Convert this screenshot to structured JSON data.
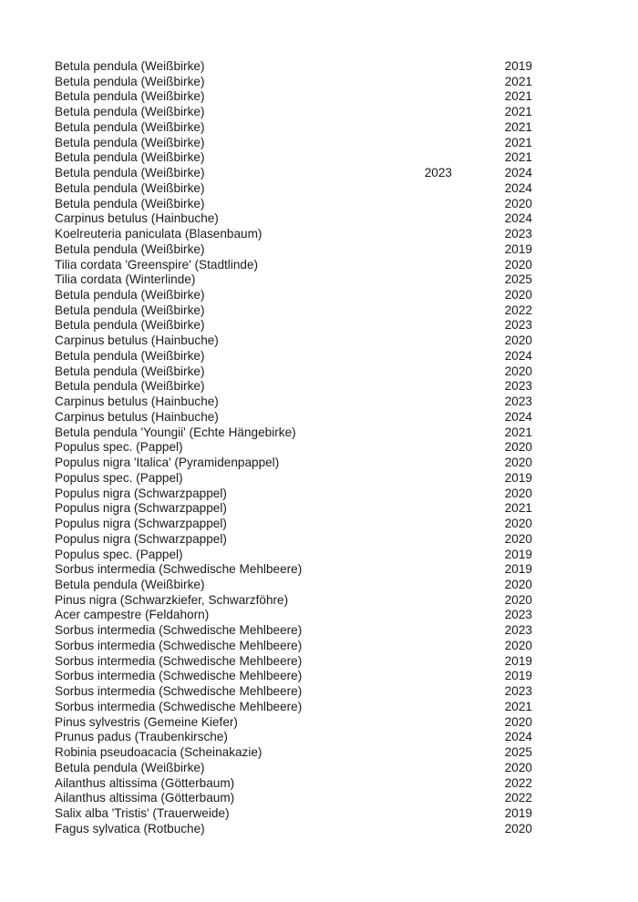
{
  "rows": [
    [
      "Betula pendula (Weißbirke)",
      "",
      "2019"
    ],
    [
      "Betula pendula (Weißbirke)",
      "",
      "2021"
    ],
    [
      "Betula pendula (Weißbirke)",
      "",
      "2021"
    ],
    [
      "Betula pendula (Weißbirke)",
      "",
      "2021"
    ],
    [
      "Betula pendula (Weißbirke)",
      "",
      "2021"
    ],
    [
      "Betula pendula (Weißbirke)",
      "",
      "2021"
    ],
    [
      "Betula pendula (Weißbirke)",
      "",
      "2021"
    ],
    [
      "Betula pendula (Weißbirke)",
      "2023",
      "2024"
    ],
    [
      "Betula pendula (Weißbirke)",
      "",
      "2024"
    ],
    [
      "Betula pendula (Weißbirke)",
      "",
      "2020"
    ],
    [
      "Carpinus betulus (Hainbuche)",
      "",
      "2024"
    ],
    [
      "Koelreuteria paniculata (Blasenbaum)",
      "",
      "2023"
    ],
    [
      "Betula pendula (Weißbirke)",
      "",
      "2019"
    ],
    [
      "Tilia cordata 'Greenspire' (Stadtlinde)",
      "",
      "2020"
    ],
    [
      "Tilia cordata (Winterlinde)",
      "",
      "2025"
    ],
    [
      "Betula pendula (Weißbirke)",
      "",
      "2020"
    ],
    [
      "Betula pendula (Weißbirke)",
      "",
      "2022"
    ],
    [
      "Betula pendula (Weißbirke)",
      "",
      "2023"
    ],
    [
      "Carpinus betulus (Hainbuche)",
      "",
      "2020"
    ],
    [
      "Betula pendula (Weißbirke)",
      "",
      "2024"
    ],
    [
      "Betula pendula (Weißbirke)",
      "",
      "2020"
    ],
    [
      "Betula pendula (Weißbirke)",
      "",
      "2023"
    ],
    [
      "Carpinus betulus (Hainbuche)",
      "",
      "2023"
    ],
    [
      "Carpinus betulus (Hainbuche)",
      "",
      "2024"
    ],
    [
      "Betula pendula 'Youngii' (Echte Hängebirke)",
      "",
      "2021"
    ],
    [
      "Populus spec. (Pappel)",
      "",
      "2020"
    ],
    [
      "Populus nigra 'Italica' (Pyramidenpappel)",
      "",
      "2020"
    ],
    [
      "Populus spec. (Pappel)",
      "",
      "2019"
    ],
    [
      "Populus nigra (Schwarzpappel)",
      "",
      "2020"
    ],
    [
      "Populus nigra (Schwarzpappel)",
      "",
      "2021"
    ],
    [
      "Populus nigra (Schwarzpappel)",
      "",
      "2020"
    ],
    [
      "Populus nigra (Schwarzpappel)",
      "",
      "2020"
    ],
    [
      "Populus spec. (Pappel)",
      "",
      "2019"
    ],
    [
      "Sorbus intermedia (Schwedische Mehlbeere)",
      "",
      "2019"
    ],
    [
      "Betula pendula (Weißbirke)",
      "",
      "2020"
    ],
    [
      "Pinus nigra (Schwarzkiefer, Schwarzföhre)",
      "",
      "2020"
    ],
    [
      "Acer campestre (Feldahorn)",
      "",
      "2023"
    ],
    [
      "Sorbus intermedia (Schwedische Mehlbeere)",
      "",
      "2023"
    ],
    [
      "Sorbus intermedia (Schwedische Mehlbeere)",
      "",
      "2020"
    ],
    [
      "Sorbus intermedia (Schwedische Mehlbeere)",
      "",
      "2019"
    ],
    [
      "Sorbus intermedia (Schwedische Mehlbeere)",
      "",
      "2019"
    ],
    [
      "Sorbus intermedia (Schwedische Mehlbeere)",
      "",
      "2023"
    ],
    [
      "Sorbus intermedia (Schwedische Mehlbeere)",
      "",
      "2021"
    ],
    [
      "Pinus sylvestris (Gemeine Kiefer)",
      "",
      "2020"
    ],
    [
      "Prunus padus (Traubenkirsche)",
      "",
      "2024"
    ],
    [
      "Robinia pseudoacacia (Scheinakazie)",
      "",
      "2025"
    ],
    [
      "Betula pendula (Weißbirke)",
      "",
      "2020"
    ],
    [
      "Ailanthus altissima (Götterbaum)",
      "",
      "2022"
    ],
    [
      "Ailanthus altissima (Götterbaum)",
      "",
      "2022"
    ],
    [
      "Salix alba 'Tristis' (Trauerweide)",
      "",
      "2019"
    ],
    [
      "Fagus sylvatica (Rotbuche)",
      "",
      "2020"
    ]
  ]
}
